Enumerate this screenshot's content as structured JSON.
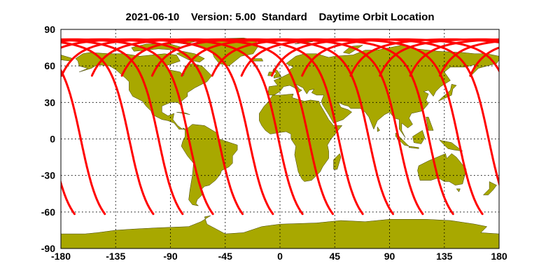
{
  "title": "2021-06-10    Version: 5.00  Standard    Daytime Orbit Location",
  "map": {
    "projection": "equirectangular",
    "lon_range": [
      -180,
      180
    ],
    "lat_range": [
      -90,
      90
    ],
    "x_ticks": [
      "-180",
      "-135",
      "-90",
      "-45",
      "0",
      "45",
      "90",
      "135",
      "180"
    ],
    "y_ticks": [
      "90",
      "60",
      "30",
      "0",
      "-30",
      "-60",
      "-90"
    ],
    "grid": "dotted",
    "land_color": "#a8a800",
    "ocean_color": "#ffffff",
    "track_color": "#ff0000"
  },
  "orbit_tracks": {
    "southern_end_lat": -62,
    "northern_start_lat": 52,
    "max_lat": 82,
    "southern_end_lons": [
      -168.8,
      -143.9,
      -104.1,
      -80,
      -55.1,
      -30.7,
      -5.8,
      18.5,
      43.4,
      68,
      92.9,
      117.3,
      142.2,
      166.3
    ]
  }
}
